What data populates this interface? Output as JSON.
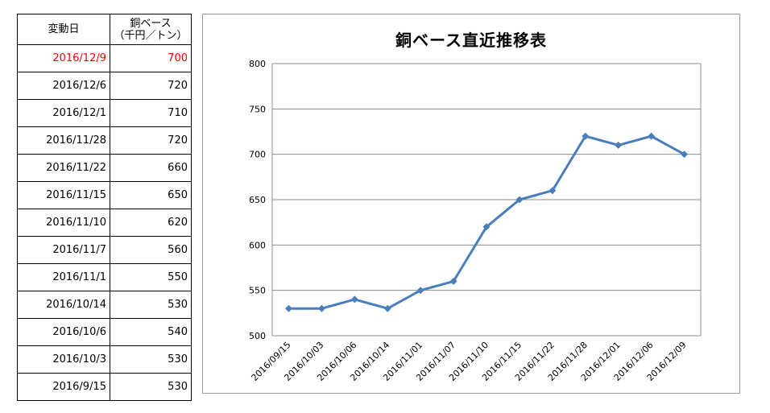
{
  "table": {
    "header": {
      "date": "変動日",
      "value_line1": "銅ベース",
      "value_line2": "（千円／トン）"
    },
    "rows": [
      {
        "date": "2016/12/9",
        "value": "700",
        "highlight": true
      },
      {
        "date": "2016/12/6",
        "value": "720"
      },
      {
        "date": "2016/12/1",
        "value": "710"
      },
      {
        "date": "2016/11/28",
        "value": "720"
      },
      {
        "date": "2016/11/22",
        "value": "660"
      },
      {
        "date": "2016/11/15",
        "value": "650"
      },
      {
        "date": "2016/11/10",
        "value": "620"
      },
      {
        "date": "2016/11/7",
        "value": "560"
      },
      {
        "date": "2016/11/1",
        "value": "550"
      },
      {
        "date": "2016/10/14",
        "value": "530"
      },
      {
        "date": "2016/10/6",
        "value": "540"
      },
      {
        "date": "2016/10/3",
        "value": "530"
      },
      {
        "date": "2016/9/15",
        "value": "530"
      }
    ],
    "highlight_color": "#ff0000"
  },
  "chart_data": {
    "type": "line",
    "title": "銅ベース直近推移表",
    "xlabel": "",
    "ylabel": "",
    "categories": [
      "2016/09/15",
      "2016/10/03",
      "2016/10/06",
      "2016/10/14",
      "2016/11/01",
      "2016/11/07",
      "2016/11/10",
      "2016/11/15",
      "2016/11/22",
      "2016/11/28",
      "2016/12/01",
      "2016/12/06",
      "2016/12/09"
    ],
    "series": [
      {
        "values": [
          530,
          530,
          540,
          530,
          550,
          560,
          620,
          650,
          660,
          720,
          710,
          720,
          700
        ],
        "color": "#4a7ebb",
        "marker": "diamond"
      }
    ],
    "ylim": [
      500,
      800
    ],
    "yticks": [
      500,
      550,
      600,
      650,
      700,
      750,
      800
    ],
    "grid": true,
    "legend": "none"
  }
}
